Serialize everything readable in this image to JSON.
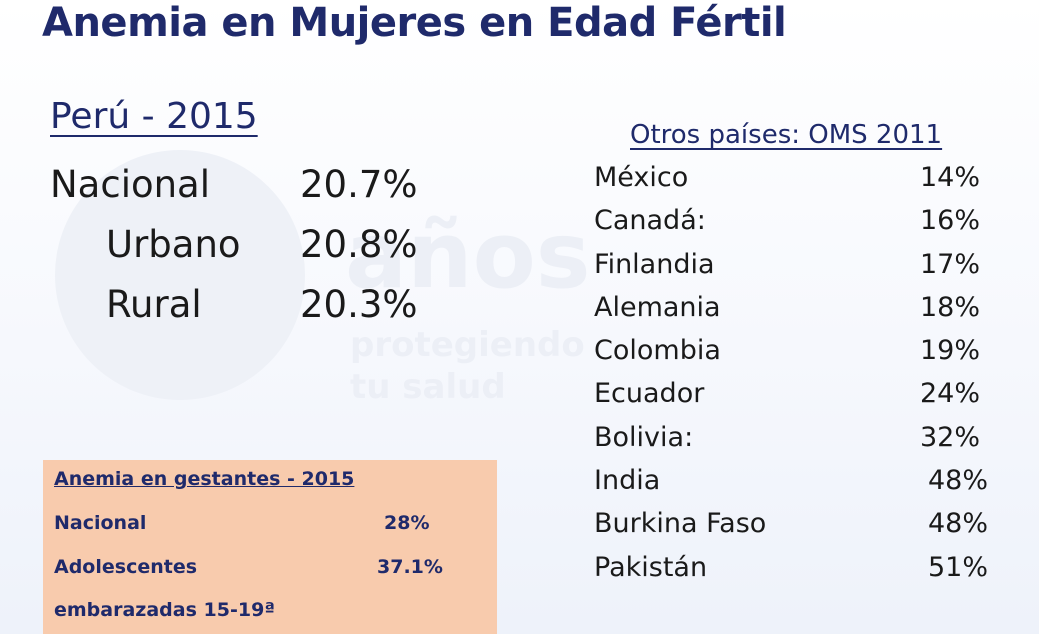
{
  "title": "Anemia en Mujeres en Edad Fértil",
  "peru": {
    "heading": "Perú - 2015",
    "rows": [
      {
        "label": "Nacional",
        "value": "20.7%"
      },
      {
        "label": "Urbano",
        "value": "20.8%"
      },
      {
        "label": "Rural",
        "value": "20.3%"
      }
    ]
  },
  "others": {
    "heading": "Otros países: OMS 2011",
    "rows": [
      {
        "country": "México",
        "value": "14%"
      },
      {
        "country": "Canadá:",
        "value": "16%"
      },
      {
        "country": "Finlandia",
        "value": "17%"
      },
      {
        "country": "Alemania",
        "value": "18%"
      },
      {
        "country": "Colombia",
        "value": "19%"
      },
      {
        "country": "Ecuador",
        "value": "24%"
      },
      {
        "country": "Bolivia:",
        "value": "32%"
      },
      {
        "country": "India",
        "value": "48%"
      },
      {
        "country": "Burkina Faso",
        "value": "48%"
      },
      {
        "country": "Pakistán",
        "value": "51%"
      }
    ]
  },
  "gestantes": {
    "title": "Anemia en gestantes - 2015",
    "rows": [
      {
        "label": "Nacional",
        "value": "28%"
      },
      {
        "label": "Adolescentes",
        "value": "37.1%"
      },
      {
        "label": "embarazadas 15-19ª",
        "value": ""
      }
    ]
  },
  "watermark": {
    "big": "años",
    "line1": "protegiendo",
    "line2": "tu salud"
  }
}
